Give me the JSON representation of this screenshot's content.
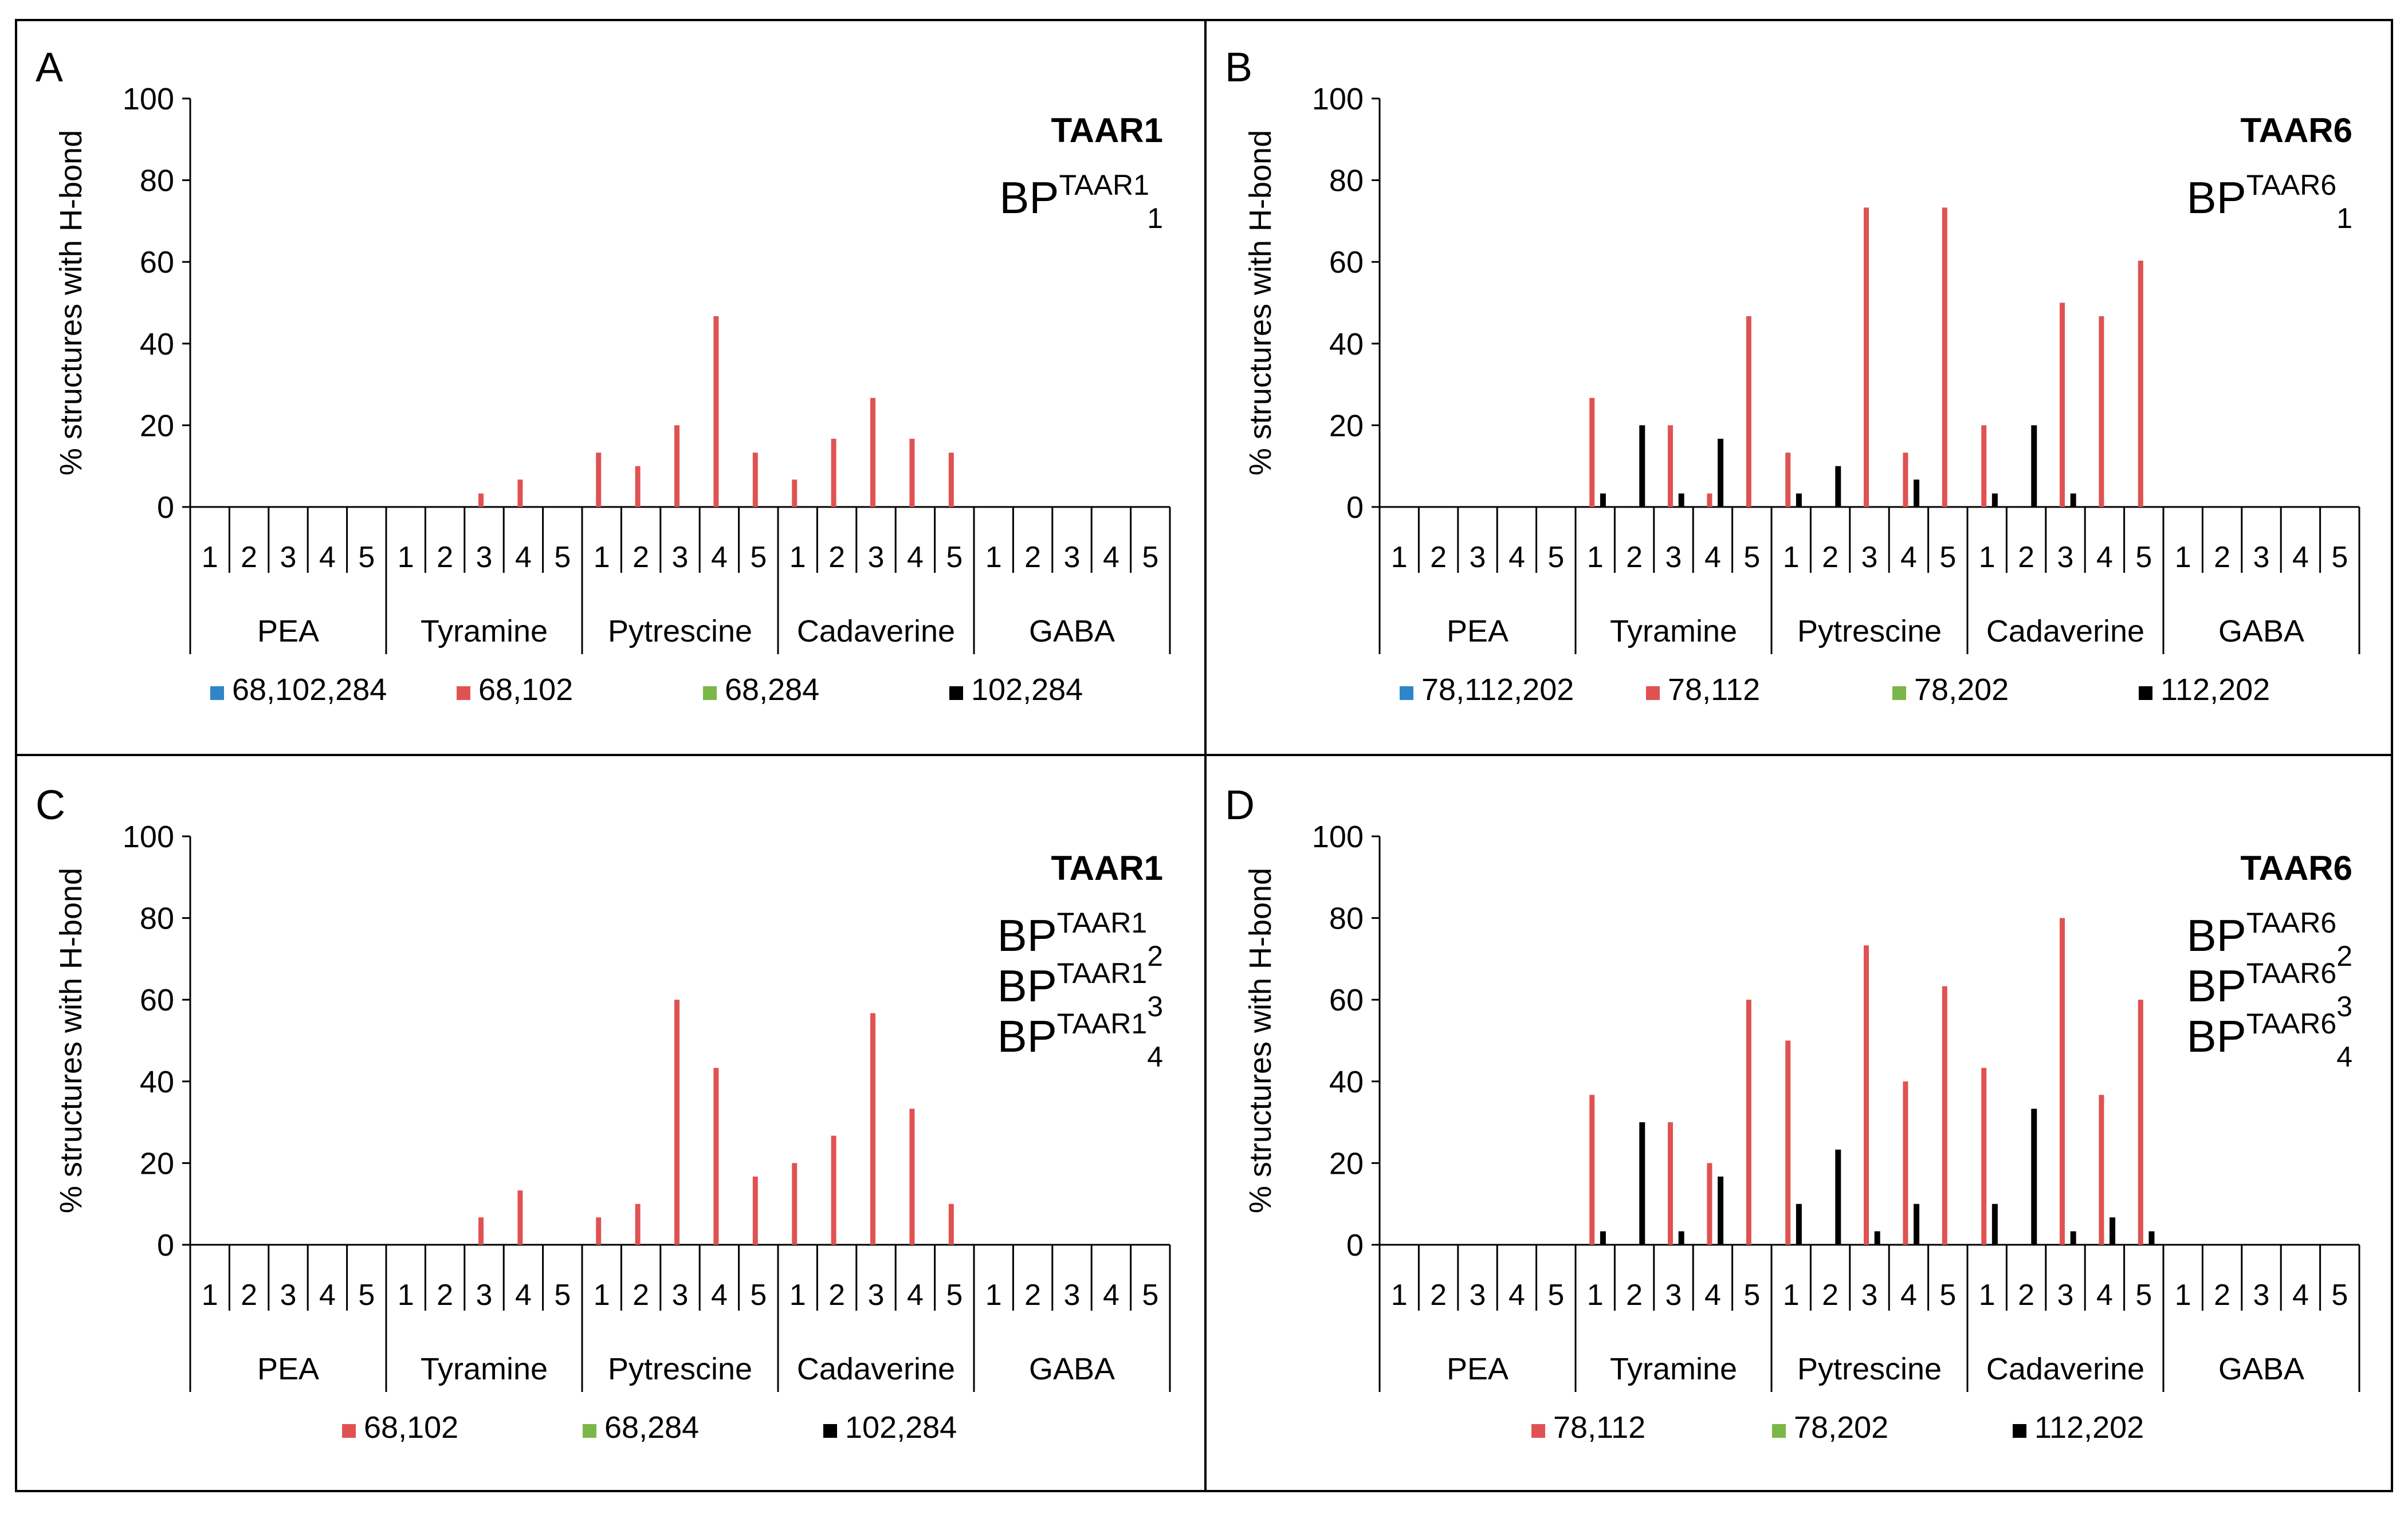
{
  "figure": {
    "panels": [
      {
        "letter": "A",
        "receptor": "TAAR1",
        "bp_base": "BP",
        "bp_sup": "TAAR1",
        "bp_subs": [
          "1"
        ]
      },
      {
        "letter": "B",
        "receptor": "TAAR6",
        "bp_base": "BP",
        "bp_sup": "TAAR6",
        "bp_subs": [
          "1"
        ]
      },
      {
        "letter": "C",
        "receptor": "TAAR1",
        "bp_base": "BP",
        "bp_sup": "TAAR1",
        "bp_subs": [
          "2",
          "3",
          "4"
        ]
      },
      {
        "letter": "D",
        "receptor": "TAAR6",
        "bp_base": "BP",
        "bp_sup": "TAAR6",
        "bp_subs": [
          "2",
          "3",
          "4"
        ]
      }
    ]
  },
  "colors": {
    "blue": "#2e86c8",
    "red": "#e05252",
    "green": "#7ab648",
    "black": "#000000"
  },
  "chart_data": [
    {
      "type": "bar",
      "panel": "A",
      "ylabel": "% structures with H-bond",
      "ylim": [
        0,
        100
      ],
      "yticks": [
        0,
        20,
        40,
        60,
        80,
        100
      ],
      "groups": [
        "PEA",
        "Tyramine",
        "Pytrescine",
        "Cadaverine",
        "GABA"
      ],
      "subcategories": [
        "1",
        "2",
        "3",
        "4",
        "5"
      ],
      "series": [
        {
          "name": "68,102,284",
          "color": "#2e86c8",
          "values": [
            0,
            0,
            0,
            0,
            0,
            0,
            0,
            0,
            0,
            0,
            0,
            0,
            0,
            0,
            0,
            0,
            0,
            0,
            0,
            0,
            0,
            0,
            0,
            0,
            0
          ]
        },
        {
          "name": "68,102",
          "color": "#e05252",
          "values": [
            0,
            0,
            0,
            0,
            0,
            0,
            0,
            3.3,
            6.7,
            0,
            13.3,
            10,
            20,
            46.7,
            13.3,
            6.7,
            16.7,
            26.7,
            16.7,
            13.3,
            0,
            0,
            0,
            0,
            0
          ]
        },
        {
          "name": "68,284",
          "color": "#7ab648",
          "values": [
            0,
            0,
            0,
            0,
            0,
            0,
            0,
            0,
            0,
            0,
            0,
            0,
            0,
            0,
            0,
            0,
            0,
            0,
            0,
            0,
            0,
            0,
            0,
            0,
            0
          ]
        },
        {
          "name": "102,284",
          "color": "#000000",
          "values": [
            0,
            0,
            0,
            0,
            0,
            0,
            0,
            0,
            0,
            0,
            0,
            0,
            0,
            0,
            0,
            0,
            0,
            0,
            0,
            0,
            0,
            0,
            0,
            0,
            0
          ]
        }
      ]
    },
    {
      "type": "bar",
      "panel": "B",
      "ylabel": "% structures with H-bond",
      "ylim": [
        0,
        100
      ],
      "yticks": [
        0,
        20,
        40,
        60,
        80,
        100
      ],
      "groups": [
        "PEA",
        "Tyramine",
        "Pytrescine",
        "Cadaverine",
        "GABA"
      ],
      "subcategories": [
        "1",
        "2",
        "3",
        "4",
        "5"
      ],
      "series": [
        {
          "name": "78,112,202",
          "color": "#2e86c8",
          "values": [
            0,
            0,
            0,
            0,
            0,
            0,
            0,
            0,
            0,
            0,
            0,
            0,
            0,
            0,
            0,
            0,
            0,
            0,
            0,
            0,
            0,
            0,
            0,
            0,
            0
          ]
        },
        {
          "name": "78,112",
          "color": "#e05252",
          "values": [
            0,
            0,
            0,
            0,
            0,
            26.7,
            0,
            20,
            3.3,
            46.7,
            13.3,
            0,
            73.3,
            13.3,
            73.3,
            20,
            0,
            50,
            46.7,
            60.3,
            0,
            0,
            0,
            0,
            0
          ]
        },
        {
          "name": "78,202",
          "color": "#7ab648",
          "values": [
            0,
            0,
            0,
            0,
            0,
            0,
            0,
            0,
            0,
            0,
            0,
            0,
            0,
            0,
            0,
            0,
            0,
            0,
            0,
            0,
            0,
            0,
            0,
            0,
            0
          ]
        },
        {
          "name": "112,202",
          "color": "#000000",
          "values": [
            0,
            0,
            0,
            0,
            0,
            3.3,
            20,
            3.3,
            16.7,
            0,
            3.3,
            10,
            0,
            6.7,
            0,
            3.3,
            20,
            3.3,
            0,
            0,
            0,
            0,
            0,
            0,
            0
          ]
        }
      ]
    },
    {
      "type": "bar",
      "panel": "C",
      "ylabel": "% structures with H-bond",
      "ylim": [
        0,
        100
      ],
      "yticks": [
        0,
        20,
        40,
        60,
        80,
        100
      ],
      "groups": [
        "PEA",
        "Tyramine",
        "Pytrescine",
        "Cadaverine",
        "GABA"
      ],
      "subcategories": [
        "1",
        "2",
        "3",
        "4",
        "5"
      ],
      "series": [
        {
          "name": "68,102",
          "color": "#e05252",
          "values": [
            0,
            0,
            0,
            0,
            0,
            0,
            0,
            6.7,
            13.3,
            0,
            6.7,
            10,
            60,
            43.3,
            16.7,
            20,
            26.7,
            56.7,
            33.3,
            10,
            0,
            0,
            0,
            0,
            0
          ]
        },
        {
          "name": "68,284",
          "color": "#7ab648",
          "values": [
            0,
            0,
            0,
            0,
            0,
            0,
            0,
            0,
            0,
            0,
            0,
            0,
            0,
            0,
            0,
            0,
            0,
            0,
            0,
            0,
            0,
            0,
            0,
            0,
            0
          ]
        },
        {
          "name": "102,284",
          "color": "#000000",
          "values": [
            0,
            0,
            0,
            0,
            0,
            0,
            0,
            0,
            0,
            0,
            0,
            0,
            0,
            0,
            0,
            0,
            0,
            0,
            0,
            0,
            0,
            0,
            0,
            0,
            0
          ]
        }
      ]
    },
    {
      "type": "bar",
      "panel": "D",
      "ylabel": "% structures with H-bond",
      "ylim": [
        0,
        100
      ],
      "yticks": [
        0,
        20,
        40,
        60,
        80,
        100
      ],
      "groups": [
        "PEA",
        "Tyramine",
        "Pytrescine",
        "Cadaverine",
        "GABA"
      ],
      "subcategories": [
        "1",
        "2",
        "3",
        "4",
        "5"
      ],
      "series": [
        {
          "name": "78,112",
          "color": "#e05252",
          "values": [
            0,
            0,
            0,
            0,
            0,
            36.7,
            0,
            30,
            20,
            60,
            50,
            0,
            73.3,
            40,
            63.3,
            43.3,
            0,
            80,
            36.7,
            60,
            0,
            0,
            0,
            0,
            0
          ]
        },
        {
          "name": "78,202",
          "color": "#7ab648",
          "values": [
            0,
            0,
            0,
            0,
            0,
            0,
            0,
            0,
            0,
            0,
            0,
            0,
            0,
            0,
            0,
            0,
            0,
            0,
            0,
            0,
            0,
            0,
            0,
            0,
            0
          ]
        },
        {
          "name": "112,202",
          "color": "#000000",
          "values": [
            0,
            0,
            0,
            0,
            0,
            3.3,
            30,
            3.3,
            16.7,
            0,
            10,
            23.3,
            3.3,
            10,
            0,
            10,
            33.3,
            3.3,
            6.7,
            3.3,
            0,
            0,
            0,
            0,
            0
          ]
        }
      ]
    }
  ]
}
